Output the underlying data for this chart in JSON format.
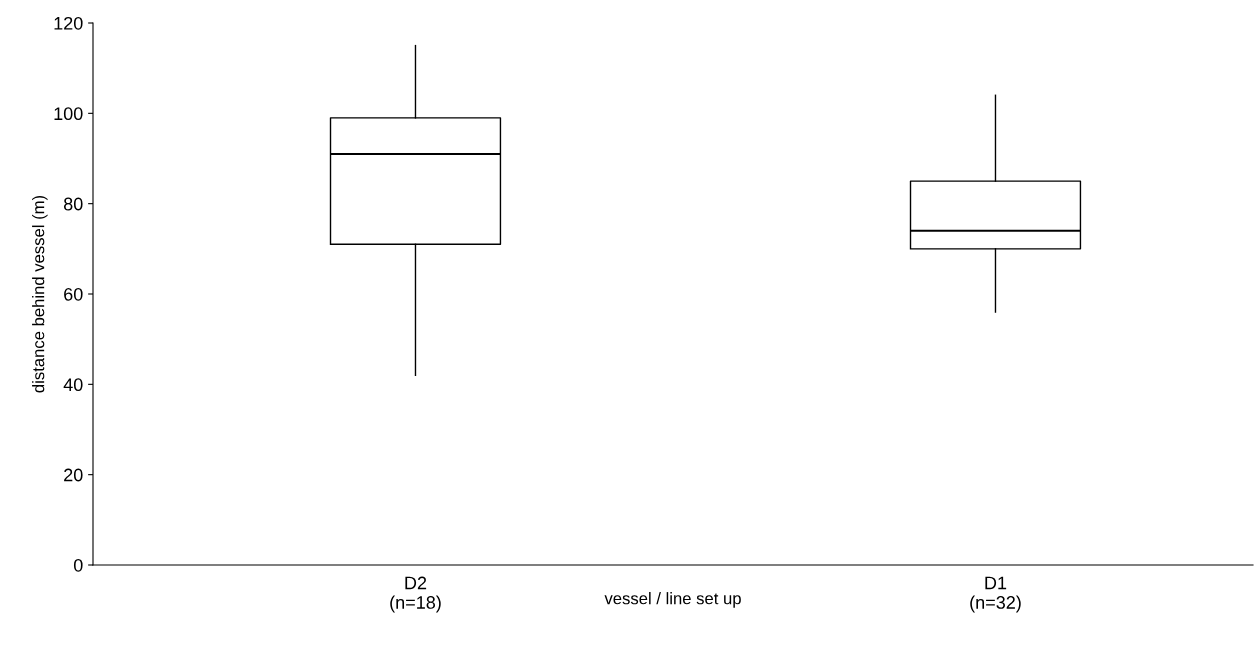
{
  "chart_data": {
    "type": "box",
    "xlabel": "vessel / line set up",
    "ylabel": "distance behind vessel (m)",
    "categories": [
      "D2\n(n=18)",
      "D1\n(n=32)"
    ],
    "boxes": [
      {
        "low": 42,
        "q1": 71,
        "median": 91,
        "q3": 99,
        "high": 115
      },
      {
        "low": 56,
        "q1": 70,
        "median": 74,
        "q3": 85,
        "high": 104
      }
    ],
    "ylim": [
      0,
      120
    ],
    "yticks": [
      0,
      20,
      40,
      60,
      80,
      100,
      120
    ],
    "grid": false
  }
}
